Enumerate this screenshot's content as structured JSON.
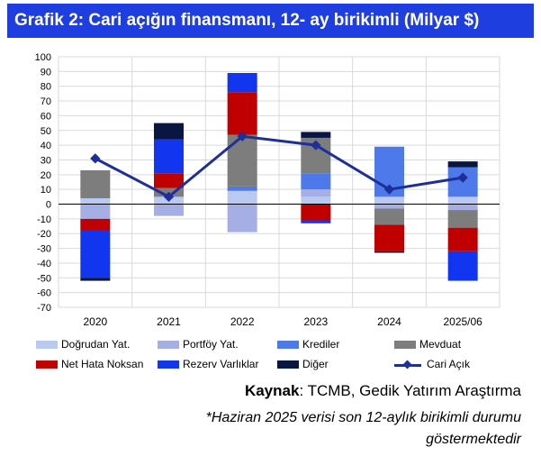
{
  "title": "Grafik 2: Cari açığın finansmanı, 12- ay birikimli (Milyar $)",
  "source": {
    "label": "Kaynak",
    "text": ": TCMB, Gedik Yatırım Araştırma"
  },
  "note": "*Haziran 2025 verisi son 12-aylık birikimli durumu göstermektedir",
  "chart_data": {
    "type": "bar",
    "stacked": true,
    "categories": [
      "2020",
      "2021",
      "2022",
      "2023",
      "2024",
      "2025/06"
    ],
    "ylim": [
      -70,
      100
    ],
    "ytick_step": 10,
    "grid": true,
    "series": [
      {
        "name": "Doğrudan Yat.",
        "color": "#b9c9f2",
        "values": [
          4,
          5,
          9,
          5,
          5,
          5
        ]
      },
      {
        "name": "Portföy Yat.",
        "color": "#a6aee6",
        "values": [
          -10,
          -8,
          -19,
          5,
          -3,
          -4
        ]
      },
      {
        "name": "Krediler",
        "color": "#4d79ea",
        "values": [
          0,
          0,
          3,
          11,
          34,
          20
        ]
      },
      {
        "name": "Mevduat",
        "color": "#7d7d7d",
        "values": [
          19,
          6,
          35,
          24,
          -11,
          -12
        ]
      },
      {
        "name": "Net Hata Noksan",
        "color": "#c00000",
        "values": [
          -8,
          10,
          29,
          -11,
          -18,
          -16
        ]
      },
      {
        "name": "Rezerv Varlıklar",
        "color": "#1235ef",
        "values": [
          -32,
          23,
          13,
          -2,
          0,
          -20
        ]
      },
      {
        "name": "Diğer",
        "color": "#0a1642",
        "values": [
          -2,
          11,
          0,
          4,
          -1,
          4
        ]
      }
    ],
    "line": {
      "name": "Cari Açık",
      "color": "#1f2f9a",
      "values": [
        31,
        5,
        46,
        40,
        10,
        18
      ]
    }
  }
}
